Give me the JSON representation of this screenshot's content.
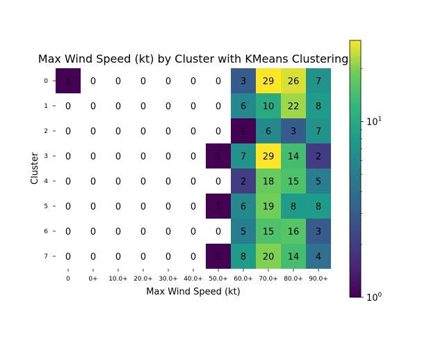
{
  "chart_data": {
    "type": "heatmap",
    "title": "Max Wind Speed (kt) by Cluster with KMeans Clustering",
    "xlabel": "Max Wind Speed (kt)",
    "ylabel": "Cluster",
    "x_categories": [
      "0",
      "0+",
      "10.0+",
      "20.0+",
      "30.0+",
      "40.0+",
      "50.0+",
      "60.0+",
      "70.0+",
      "80.0+",
      "90.0+"
    ],
    "y_categories": [
      "0",
      "1",
      "2",
      "3",
      "4",
      "5",
      "6",
      "7"
    ],
    "values": [
      [
        1,
        0,
        0,
        0,
        0,
        0,
        0,
        3,
        29,
        26,
        7
      ],
      [
        0,
        0,
        0,
        0,
        0,
        0,
        0,
        6,
        10,
        22,
        8
      ],
      [
        0,
        0,
        0,
        0,
        0,
        0,
        0,
        1,
        6,
        3,
        7
      ],
      [
        0,
        0,
        0,
        0,
        0,
        0,
        1,
        7,
        29,
        14,
        2
      ],
      [
        0,
        0,
        0,
        0,
        0,
        0,
        0,
        2,
        18,
        15,
        5
      ],
      [
        0,
        0,
        0,
        0,
        0,
        0,
        1,
        6,
        19,
        8,
        8
      ],
      [
        0,
        0,
        0,
        0,
        0,
        0,
        0,
        5,
        15,
        16,
        3
      ],
      [
        0,
        0,
        0,
        0,
        0,
        0,
        1,
        8,
        20,
        14,
        4
      ]
    ],
    "colorscale": "viridis",
    "color_scale_type": "log",
    "color_range": [
      1,
      29
    ],
    "zero_cells": "blank",
    "colorbar": {
      "ticks": [
        {
          "value": 1,
          "label": "10",
          "exp": "0"
        },
        {
          "value": 10,
          "label": "10",
          "exp": "1"
        }
      ]
    }
  }
}
